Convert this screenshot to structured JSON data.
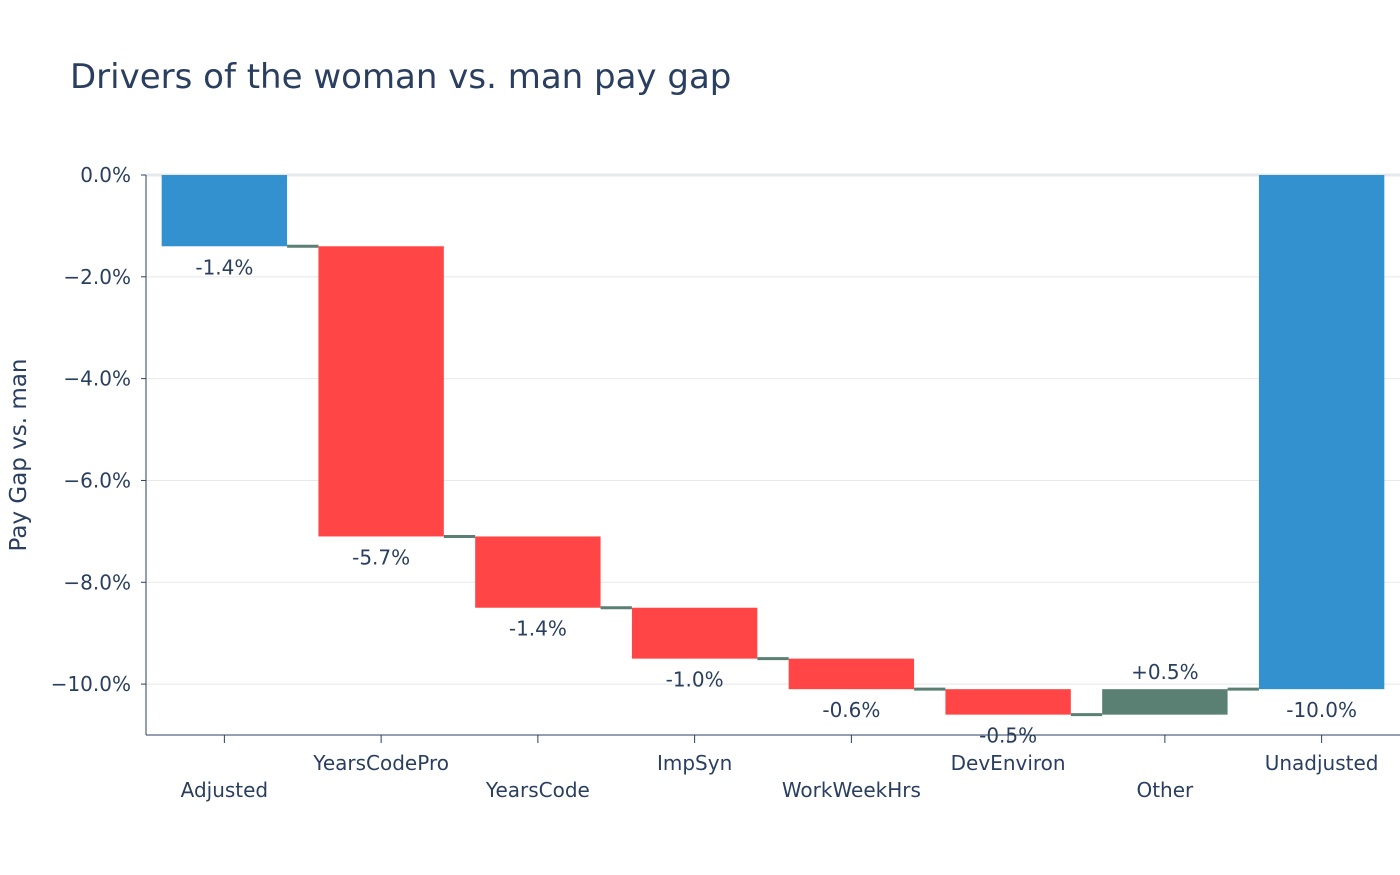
{
  "chart_data": {
    "type": "waterfall",
    "title": "Drivers of the woman vs. man pay gap",
    "ylabel": "Pay Gap vs. man",
    "xlabel": "",
    "ylim": [
      -11.0,
      0.0
    ],
    "yticks": [
      0,
      -2,
      -4,
      -6,
      -8,
      -10
    ],
    "ytick_labels": [
      "0.0%",
      "−2.0%",
      "−4.0%",
      "−6.0%",
      "−8.0%",
      "−10.0%"
    ],
    "grid": true,
    "categories": [
      "Adjusted",
      "YearsCodePro",
      "YearsCode",
      "ImpSyn",
      "WorkWeekHrs",
      "DevEnviron",
      "Other",
      "Unadjusted"
    ],
    "measures": [
      "absolute",
      "relative",
      "relative",
      "relative",
      "relative",
      "relative",
      "relative",
      "total"
    ],
    "values": [
      -1.4,
      -5.7,
      -1.4,
      -1.0,
      -0.6,
      -0.5,
      0.5,
      -10.0
    ],
    "data_labels": [
      "-1.4%",
      "-5.7%",
      "-1.4%",
      "-1.0%",
      "-0.6%",
      "-0.5%",
      "+0.5%",
      "-10.0%"
    ],
    "colors": {
      "total": "#3391cf",
      "decreasing": "#ff4545",
      "increasing": "#5a7f73",
      "connector": "#5a7f73",
      "axis": "#2a3f5f",
      "grid": "#e6e8ec",
      "zeroline": "#e6e8ec"
    }
  }
}
